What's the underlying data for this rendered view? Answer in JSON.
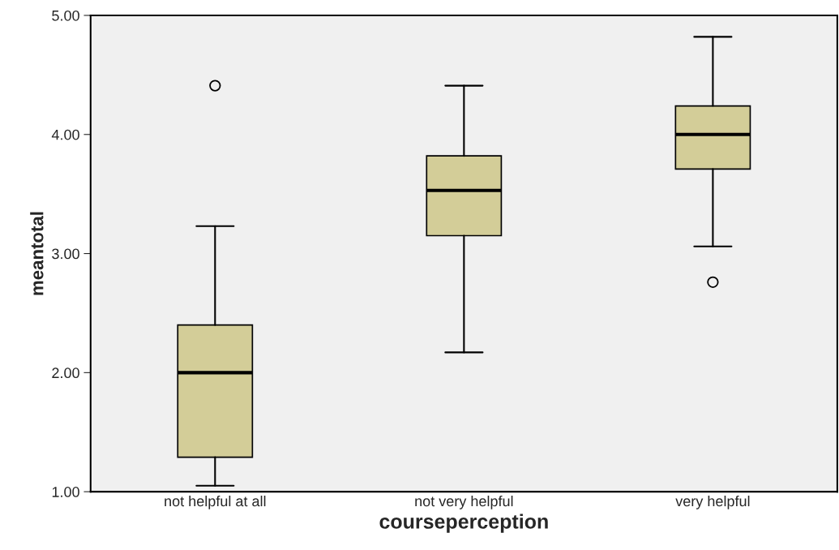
{
  "chart_data": {
    "type": "box",
    "xlabel": "courseperception",
    "ylabel": "meantotal",
    "categories": [
      "not helpful at all",
      "not very helpful",
      "very helpful"
    ],
    "boxes": [
      {
        "low": 1.05,
        "q1": 1.29,
        "median": 2.0,
        "q3": 2.4,
        "high": 3.23,
        "outliers": [
          4.41
        ]
      },
      {
        "low": 2.17,
        "q1": 3.15,
        "median": 3.53,
        "q3": 3.82,
        "high": 4.41
      },
      {
        "low": 3.06,
        "q1": 3.71,
        "median": 4.0,
        "q3": 4.24,
        "high": 4.82,
        "outliers": [
          2.76
        ]
      }
    ],
    "color": "#d3cd98",
    "ylim": [
      1.0,
      5.0
    ],
    "yticks": [
      {
        "value": 1.0,
        "label": "1.00"
      },
      {
        "value": 2.0,
        "label": "2.00"
      },
      {
        "value": 3.0,
        "label": "3.00"
      },
      {
        "value": 4.0,
        "label": "4.00"
      },
      {
        "value": 5.0,
        "label": "5.00"
      }
    ]
  }
}
